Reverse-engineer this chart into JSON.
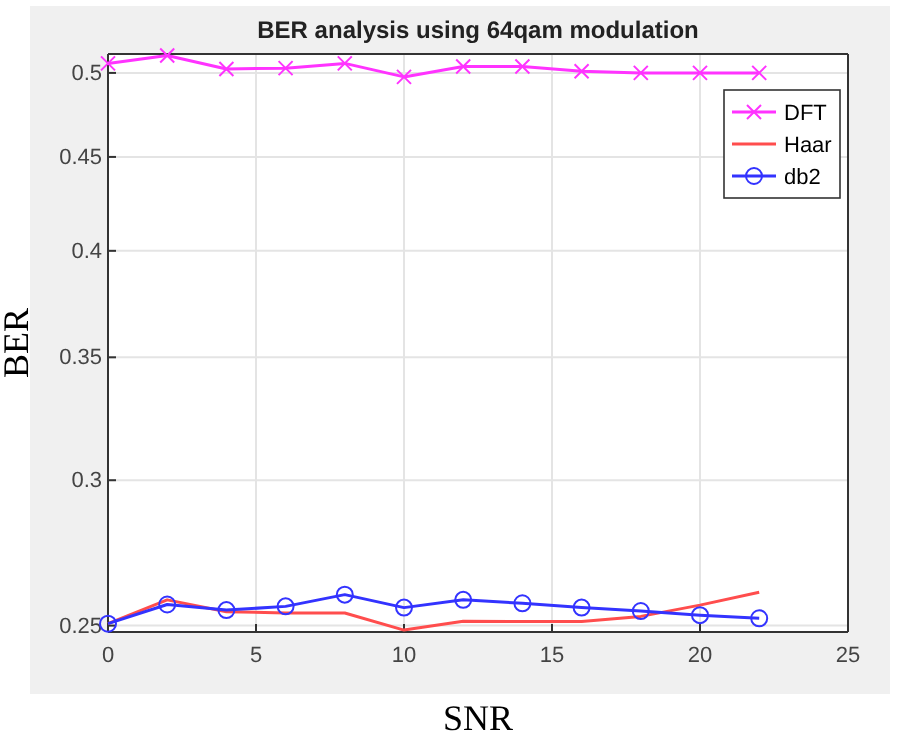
{
  "chart_data": {
    "type": "line",
    "title": "BER analysis using 64qam modulation",
    "xlabel": "SNR",
    "ylabel": "BER",
    "x": [
      0,
      2,
      4,
      6,
      8,
      10,
      12,
      14,
      16,
      18,
      20,
      22
    ],
    "series": [
      {
        "name": "DFT",
        "color": "#ff33ff",
        "marker": "cross",
        "values": [
          0.506,
          0.511,
          0.5025,
          0.503,
          0.506,
          0.4975,
          0.504,
          0.504,
          0.501,
          0.5,
          0.5,
          0.5
        ]
      },
      {
        "name": "Haar",
        "color": "#ff4d4d",
        "marker": "none",
        "values": [
          0.2506,
          0.2582,
          0.2544,
          0.254,
          0.254,
          0.2486,
          0.2514,
          0.2513,
          0.2513,
          0.2529,
          0.2565,
          0.2607
        ]
      },
      {
        "name": "db2",
        "color": "#3333ff",
        "marker": "circle",
        "values": [
          0.2506,
          0.2567,
          0.2549,
          0.2561,
          0.2599,
          0.2557,
          0.2582,
          0.2571,
          0.2557,
          0.2546,
          0.2533,
          0.2523
        ]
      }
    ],
    "log": "y",
    "xlim": [
      0,
      25
    ],
    "xticks": [
      0,
      5,
      10,
      15,
      20,
      25
    ],
    "ylim": [
      0.248,
      0.512
    ],
    "yticks": [
      0.25,
      0.3,
      0.35,
      0.4,
      0.45,
      0.5
    ],
    "grid": true,
    "legend": "top right"
  }
}
